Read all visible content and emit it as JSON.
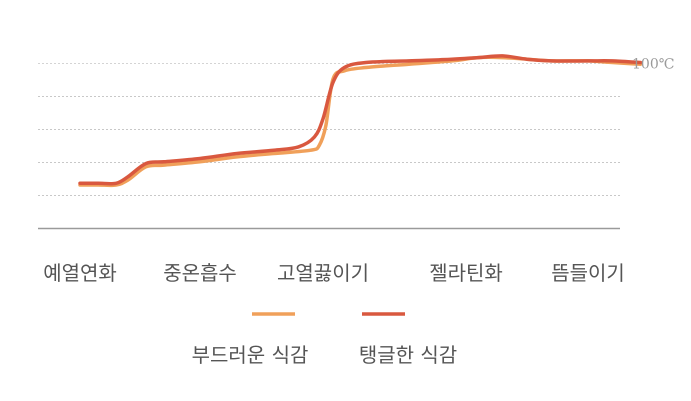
{
  "chart_data": {
    "type": "line",
    "categories": [
      "예열연화",
      "중온흡수",
      "고열끓이기",
      "젤라틴화",
      "뜸들이기"
    ],
    "ylim": [
      0,
      110
    ],
    "grid": true,
    "reference_line": {
      "value": 100,
      "label": "100℃"
    },
    "legend_position": "bottom-center",
    "series": [
      {
        "name": "부드러운 식감",
        "color": "#f0a05a",
        "points": [
          [
            0.0,
            26
          ],
          [
            0.15,
            26
          ],
          [
            0.3,
            26
          ],
          [
            0.4,
            29
          ],
          [
            0.55,
            37
          ],
          [
            0.7,
            38
          ],
          [
            1.0,
            40
          ],
          [
            1.3,
            43
          ],
          [
            1.6,
            45
          ],
          [
            1.9,
            47
          ],
          [
            1.97,
            50
          ],
          [
            2.02,
            62
          ],
          [
            2.07,
            90
          ],
          [
            2.15,
            95
          ],
          [
            2.3,
            97
          ],
          [
            2.6,
            99
          ],
          [
            2.9,
            101
          ],
          [
            3.1,
            103
          ],
          [
            3.3,
            103
          ],
          [
            3.5,
            102
          ],
          [
            3.7,
            101
          ],
          [
            4.0,
            101
          ],
          [
            4.2,
            100
          ],
          [
            4.43,
            99
          ]
        ]
      },
      {
        "name": "탱글한 식감",
        "color": "#d9583f",
        "points": [
          [
            0.0,
            27
          ],
          [
            0.15,
            27
          ],
          [
            0.3,
            27
          ],
          [
            0.4,
            31
          ],
          [
            0.55,
            39
          ],
          [
            0.7,
            40
          ],
          [
            1.0,
            42
          ],
          [
            1.3,
            45
          ],
          [
            1.6,
            47
          ],
          [
            1.8,
            49
          ],
          [
            1.93,
            55
          ],
          [
            2.0,
            66
          ],
          [
            2.07,
            88
          ],
          [
            2.15,
            97
          ],
          [
            2.3,
            100
          ],
          [
            2.6,
            101
          ],
          [
            2.9,
            102
          ],
          [
            3.1,
            103
          ],
          [
            3.3,
            104
          ],
          [
            3.5,
            102
          ],
          [
            3.7,
            101
          ],
          [
            4.0,
            101
          ],
          [
            4.2,
            101
          ],
          [
            4.43,
            100
          ]
        ]
      }
    ]
  }
}
